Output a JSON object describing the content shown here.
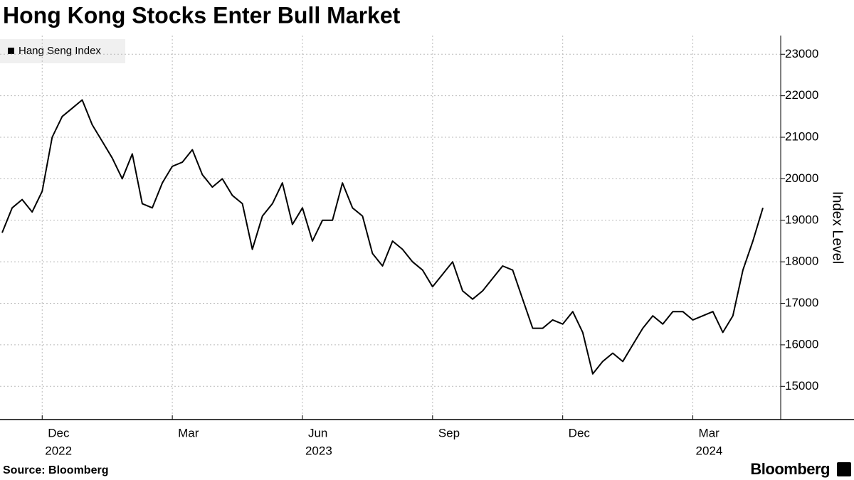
{
  "chart_data": {
    "type": "line",
    "title": "Hong Kong Stocks Enter Bull Market",
    "y_axis_label": "Index Level",
    "source": "Source: Bloomberg",
    "brand": "Bloomberg",
    "categories": [
      null,
      null,
      null,
      null,
      "Dec",
      null,
      null,
      null,
      null,
      null,
      null,
      null,
      null,
      null,
      null,
      null,
      null,
      "Mar",
      null,
      null,
      null,
      null,
      null,
      null,
      null,
      null,
      null,
      null,
      null,
      null,
      "Jun",
      null,
      null,
      null,
      null,
      null,
      null,
      null,
      null,
      null,
      null,
      null,
      null,
      "Sep",
      null,
      null,
      null,
      null,
      null,
      null,
      null,
      null,
      null,
      null,
      null,
      null,
      "Dec",
      null,
      null,
      null,
      null,
      null,
      null,
      null,
      null,
      null,
      null,
      null,
      null,
      "Mar",
      null,
      null,
      null,
      null,
      null,
      null,
      null
    ],
    "year_labels": [
      null,
      null,
      null,
      null,
      "2022",
      null,
      null,
      null,
      null,
      null,
      null,
      null,
      null,
      null,
      null,
      null,
      null,
      null,
      null,
      null,
      null,
      null,
      null,
      null,
      null,
      null,
      null,
      null,
      null,
      null,
      "2023",
      null,
      null,
      null,
      null,
      null,
      null,
      null,
      null,
      null,
      null,
      null,
      null,
      null,
      null,
      null,
      null,
      null,
      null,
      null,
      null,
      null,
      null,
      null,
      null,
      null,
      null,
      null,
      null,
      null,
      null,
      null,
      null,
      null,
      null,
      null,
      null,
      null,
      null,
      "2024",
      null,
      null,
      null,
      null,
      null,
      null,
      null
    ],
    "series": [
      {
        "name": "Hang Seng Index",
        "color": "#000000",
        "values": [
          18700,
          19300,
          19500,
          19200,
          19700,
          21000,
          21500,
          21700,
          21900,
          21300,
          20900,
          20500,
          20000,
          20600,
          19400,
          19300,
          19900,
          20300,
          20400,
          20700,
          20100,
          19800,
          20000,
          19600,
          19400,
          18300,
          19100,
          19400,
          19900,
          18900,
          19300,
          18500,
          19000,
          19000,
          19900,
          19300,
          19100,
          18200,
          17900,
          18500,
          18300,
          18000,
          17800,
          17400,
          17700,
          18000,
          17300,
          17100,
          17300,
          17600,
          17900,
          17800,
          17100,
          16400,
          16400,
          16600,
          16500,
          16800,
          16300,
          15300,
          15600,
          15800,
          15600,
          16000,
          16400,
          16700,
          16500,
          16800,
          16800,
          16600,
          16700,
          16800,
          16300,
          16700,
          17800,
          18500,
          19300
        ]
      }
    ],
    "ylim": [
      14200,
      23450
    ],
    "yticks": [
      15000,
      16000,
      17000,
      18000,
      19000,
      20000,
      21000,
      22000,
      23000
    ],
    "grid": true,
    "legend": "upper left"
  }
}
